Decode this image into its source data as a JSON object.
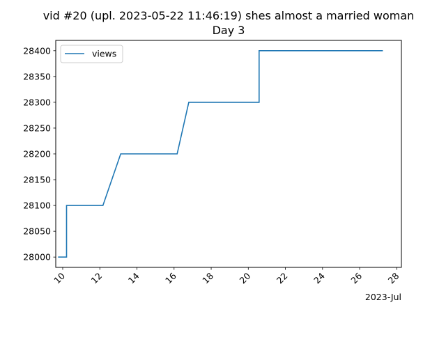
{
  "chart_data": {
    "type": "line",
    "title": "vid #20 (upl. 2023-05-22 11:46:19) shes almost a married woman",
    "subtitle": "Day 3",
    "xlabel": "",
    "ylabel": "",
    "x_offset_label": "2023-Jul",
    "x_tick_labels": [
      "10",
      "12",
      "14",
      "16",
      "18",
      "20",
      "22",
      "24",
      "26",
      "28"
    ],
    "x_tick_values": [
      "2023-07-10",
      "2023-07-12",
      "2023-07-14",
      "2023-07-16",
      "2023-07-18",
      "2023-07-20",
      "2023-07-22",
      "2023-07-24",
      "2023-07-26",
      "2023-07-28"
    ],
    "xlim": [
      "2023-07-09 15:00",
      "2023-07-28 06:00"
    ],
    "y_tick_values": [
      28000,
      28050,
      28100,
      28150,
      28200,
      28250,
      28300,
      28350,
      28400
    ],
    "y_tick_labels": [
      "28000",
      "28050",
      "28100",
      "28150",
      "28200",
      "28250",
      "28300",
      "28350",
      "28400"
    ],
    "ylim": [
      27980,
      28420
    ],
    "grid": false,
    "legend_position": "upper-left",
    "series": [
      {
        "name": "views",
        "color": "#1f77b4",
        "points": [
          {
            "x": "2023-07-09 18:00",
            "y": 28000
          },
          {
            "x": "2023-07-10 05:00",
            "y": 28000
          },
          {
            "x": "2023-07-10 05:00",
            "y": 28100
          },
          {
            "x": "2023-07-12 04:00",
            "y": 28100
          },
          {
            "x": "2023-07-13 03:00",
            "y": 28200
          },
          {
            "x": "2023-07-16 04:00",
            "y": 28200
          },
          {
            "x": "2023-07-16 19:00",
            "y": 28300
          },
          {
            "x": "2023-07-20 14:00",
            "y": 28300
          },
          {
            "x": "2023-07-20 14:00",
            "y": 28400
          },
          {
            "x": "2023-07-27 06:00",
            "y": 28400
          }
        ]
      }
    ]
  }
}
